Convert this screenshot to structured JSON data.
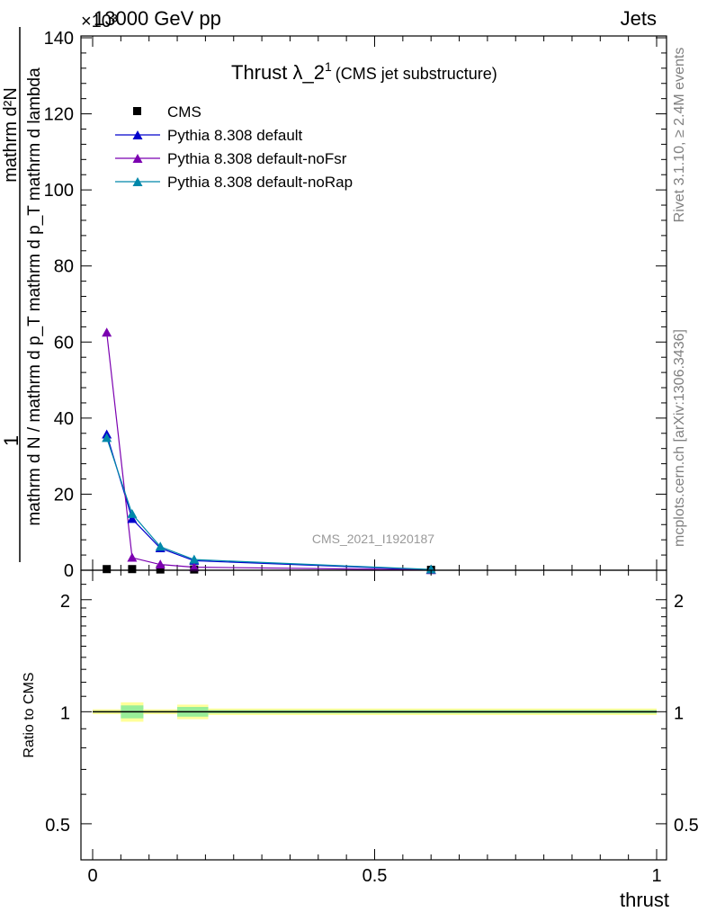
{
  "header": {
    "left": "13000 GeV pp",
    "right": "Jets",
    "multiplier": "×10³"
  },
  "side_labels": {
    "rivet": "Rivet 3.1.10, ≥ 2.4M events",
    "mcplots": "mcplots.cern.ch [arXiv:1306.3436]"
  },
  "watermark": "CMS_2021_I1920187",
  "chart_data": [
    {
      "type": "line",
      "title_main": "Thrust λ_2",
      "title_sup": "1",
      "title_sub": "(CMS jet substructure)",
      "ylabel_top": "1",
      "ylabel_bottom": "mathrm d N / mathrm d p_T mathrm d p_T mathrm d lambda",
      "ylabel_numerator": "mathrm d²N",
      "ylim": [
        0,
        140
      ],
      "yticks": [
        0,
        20,
        40,
        60,
        80,
        100,
        120,
        140
      ],
      "ytick_labels": [
        "0",
        "20",
        "40",
        "60",
        "80",
        "100",
        "120",
        "140"
      ],
      "xlim": [
        0,
        1
      ],
      "legend_position": "top-left",
      "series": [
        {
          "name": "CMS",
          "marker": "square",
          "color": "#000000",
          "x": [
            0.025,
            0.07,
            0.12,
            0.18,
            0.6
          ],
          "y": [
            0.3,
            0.3,
            0.2,
            0.2,
            0.1
          ]
        },
        {
          "name": "Pythia 8.308 default",
          "marker": "triangle",
          "color": "#0000cc",
          "x": [
            0.025,
            0.07,
            0.12,
            0.18,
            0.6
          ],
          "y": [
            35.7,
            13.5,
            5.8,
            2.5,
            0.1
          ]
        },
        {
          "name": "Pythia 8.308 default-noFsr",
          "marker": "triangle",
          "color": "#7b00b0",
          "x": [
            0.025,
            0.07,
            0.12,
            0.18,
            0.6
          ],
          "y": [
            62.5,
            3.3,
            1.5,
            0.8,
            0.1
          ]
        },
        {
          "name": "Pythia 8.308 default-noRap",
          "marker": "triangle",
          "color": "#0088aa",
          "x": [
            0.025,
            0.07,
            0.12,
            0.18,
            0.6
          ],
          "y": [
            34.8,
            14.8,
            6.2,
            2.8,
            0.2
          ]
        }
      ]
    },
    {
      "type": "line",
      "ylabel": "Ratio to CMS",
      "xlabel": "thrust",
      "xlim": [
        0,
        1
      ],
      "xticks": [
        0,
        0.5,
        1
      ],
      "xtick_labels": [
        "0",
        "0.5",
        "1"
      ],
      "ylim": [
        0.4,
        2.4
      ],
      "log_y": true,
      "yticks": [
        0.5,
        1,
        2
      ],
      "ytick_labels": [
        "0.5",
        "1",
        "2"
      ],
      "reference_line": 1,
      "bands": [
        {
          "x0": 0.0,
          "x1": 0.05,
          "stat": 0.005,
          "total": 0.015
        },
        {
          "x0": 0.05,
          "x1": 0.09,
          "stat": 0.04,
          "total": 0.06
        },
        {
          "x0": 0.09,
          "x1": 0.15,
          "stat": 0.005,
          "total": 0.015
        },
        {
          "x0": 0.15,
          "x1": 0.205,
          "stat": 0.03,
          "total": 0.045
        },
        {
          "x0": 0.205,
          "x1": 1.0,
          "stat": 0.01,
          "total": 0.02
        }
      ],
      "band_colors": {
        "stat": "#99ee99",
        "total": "#ffff99"
      }
    }
  ]
}
